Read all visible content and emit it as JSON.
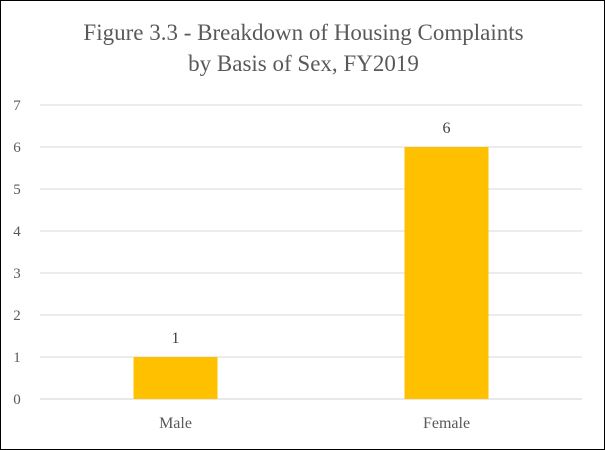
{
  "chart_data": {
    "type": "bar",
    "title_lines": [
      "Figure 3.3 - Breakdown of Housing Complaints",
      "by Basis of Sex, FY2019"
    ],
    "categories": [
      "Male",
      "Female"
    ],
    "values": [
      1,
      6
    ],
    "data_labels": [
      "1",
      "6"
    ],
    "y_ticks": [
      "0",
      "1",
      "2",
      "3",
      "4",
      "5",
      "6",
      "7"
    ],
    "ylim": [
      0,
      7
    ],
    "grid": true,
    "legend": "none",
    "bar_color": "#FFC000",
    "gridline_color": "#D9D9D9",
    "text_color": "#595959"
  }
}
